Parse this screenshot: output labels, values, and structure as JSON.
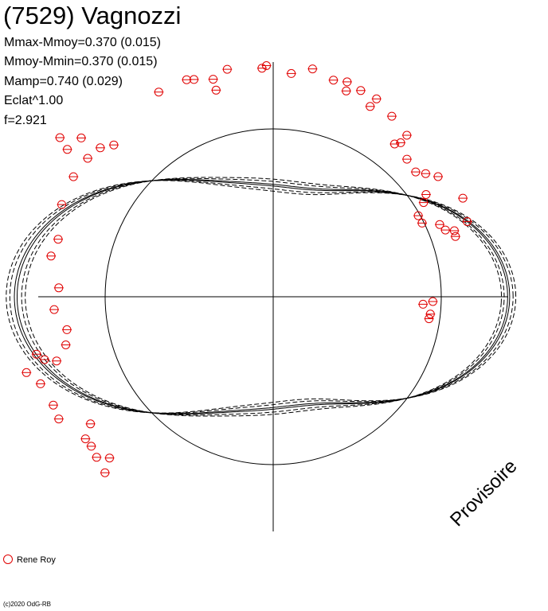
{
  "header": {
    "title": "(7529) Vagnozzi",
    "lines": [
      "Mmax-Mmoy=0.370 (0.015)",
      "Mmoy-Mmin=0.370 (0.015)",
      "Mamp=0.740 (0.029)",
      "Eclat^1.00",
      "f=2.921"
    ]
  },
  "watermark": "Provisoire",
  "legend": {
    "label": "Rene Roy"
  },
  "copyright": "(c)2020 OdG-RB",
  "colors": {
    "observation": "#e00000",
    "curve": "#000000"
  },
  "chart_data": {
    "type": "scatter",
    "series": [
      {
        "name": "Rene Roy",
        "points_xy": [
          [
            1.86,
            -0.05
          ],
          [
            1.95,
            -0.14
          ],
          [
            1.96,
            -0.11
          ],
          [
            1.98,
            -0.03
          ],
          [
            2.06,
            0.46
          ],
          [
            2.06,
            0.51
          ],
          [
            2.29,
            0.37
          ],
          [
            2.25,
            0.41
          ],
          [
            2.38,
            0.32
          ],
          [
            2.39,
            0.35
          ],
          [
            2.2,
            0.56
          ],
          [
            2.58,
            0.37
          ],
          [
            2.65,
            0.48
          ],
          [
            2.28,
            0.59
          ],
          [
            2.35,
            0.72
          ],
          [
            2.38,
            0.8
          ],
          [
            2.43,
            0.68
          ],
          [
            2.53,
            0.63
          ],
          [
            2.42,
            0.9
          ],
          [
            2.48,
            0.88
          ],
          [
            2.6,
            0.88
          ],
          [
            2.68,
            0.99
          ],
          [
            2.65,
            1.1
          ],
          [
            2.71,
            1.23
          ],
          [
            2.77,
            1.09
          ],
          [
            2.78,
            1.17
          ],
          [
            2.79,
            1.3
          ],
          [
            2.82,
            1.24
          ],
          [
            2.87,
            1.4
          ],
          [
            2.78,
            1.49
          ],
          [
            2.84,
            1.62
          ],
          [
            2.87,
            1.6
          ],
          [
            2.88,
            1.77
          ],
          [
            2.87,
            1.92
          ],
          [
            2.8,
            1.84
          ],
          [
            2.66,
            1.84
          ],
          [
            2.9,
            1.95
          ],
          [
            2.91,
            2.08
          ],
          [
            2.73,
            2.38
          ],
          [
            2.83,
            2.43
          ],
          [
            2.87,
            2.5
          ],
          [
            2.89,
            2.6
          ],
          [
            3.09,
            2.45
          ],
          [
            3.14,
            2.52
          ],
          [
            3.3,
            2.5
          ],
          [
            2.86,
            2.73
          ],
          [
            2.76,
            2.88
          ],
          [
            2.8,
            2.96
          ],
          [
            2.66,
            3.1
          ],
          [
            2.72,
            3.2
          ],
          [
            2.59,
            3.3
          ],
          [
            2.64,
            3.37
          ],
          [
            2.8,
            3.43
          ],
          [
            2.94,
            3.41
          ],
          [
            3.02,
            3.38
          ],
          [
            3.08,
            3.5
          ],
          [
            3.04,
            3.6
          ],
          [
            3.06,
            3.66
          ],
          [
            3.2,
            3.44
          ],
          [
            2.92,
            3.79
          ],
          [
            2.92,
            3.83
          ],
          [
            2.76,
            3.75
          ],
          [
            2.85,
            3.92
          ],
          [
            2.96,
            3.88
          ],
          [
            3.02,
            3.95
          ]
        ]
      }
    ],
    "curve": {
      "amplitude": 0.74,
      "f": 2.921
    }
  }
}
